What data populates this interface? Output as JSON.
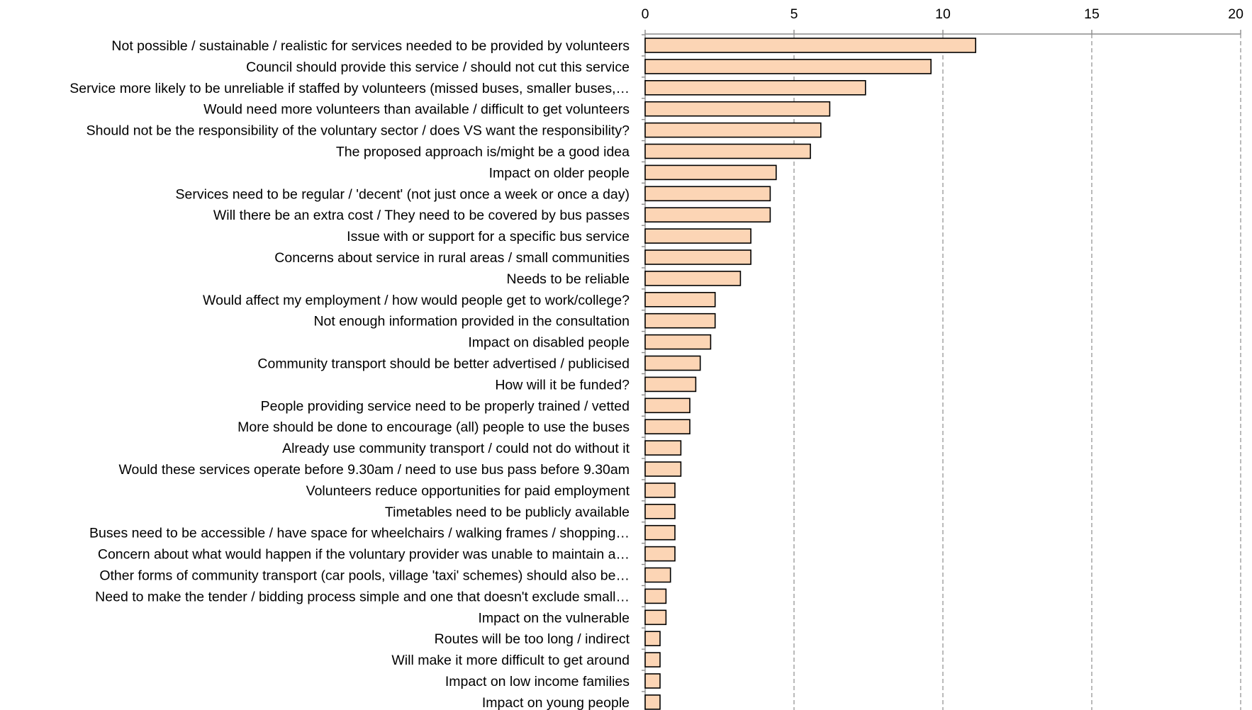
{
  "chart_data": {
    "type": "bar",
    "orientation": "horizontal",
    "title": "",
    "xlabel": "",
    "ylabel": "",
    "xlim": [
      0,
      20
    ],
    "x_ticks": [
      0,
      5,
      10,
      15,
      20
    ],
    "x_axis_position": "top",
    "grid": true,
    "bar_color": "#fcd5b5",
    "bar_edge_color": "#000000",
    "grid_color": "#8c8c8c",
    "categories": [
      "Not possible / sustainable / realistic for services needed to be provided by volunteers",
      "Council should provide this service / should not cut this service",
      "Service more likely to be unreliable if staffed by volunteers (missed buses, smaller buses,…",
      "Would need more volunteers than available / difficult to get volunteers",
      "Should not be the responsibility of the voluntary sector / does VS want the responsibility?",
      "The proposed approach is/might be a good idea",
      "Impact on older people",
      "Services need to be regular / 'decent' (not just once a week or once a day)",
      "Will there be an extra cost / They need to be covered by bus passes",
      "Issue with or support for a specific bus service",
      "Concerns about service in rural areas / small communities",
      "Needs to be reliable",
      "Would affect my employment / how would people get to work/college?",
      "Not enough information provided in the consultation",
      "Impact on disabled people",
      "Community transport should be better advertised / publicised",
      "How will it be funded?",
      "People providing service need to be properly trained / vetted",
      "More should be done to encourage (all) people to use the buses",
      "Already use community transport / could not do without it",
      "Would these services operate before 9.30am / need to use bus pass before 9.30am",
      "Volunteers reduce opportunities for paid employment",
      "Timetables need to be publicly available",
      "Buses need to be accessible / have space for wheelchairs / walking frames / shopping…",
      "Concern about what would happen if the voluntary provider was unable to maintain a…",
      "Other forms of community transport (car pools, village 'taxi' schemes) should also be…",
      "Need to make the tender / bidding process simple and one that doesn't exclude small…",
      "Impact on the vulnerable",
      "Routes will be too long / indirect",
      "Will make it more difficult to get around",
      "Impact on low income families",
      "Impact on young people"
    ],
    "values": [
      11.1,
      9.6,
      7.4,
      6.2,
      5.9,
      5.55,
      4.4,
      4.2,
      4.2,
      3.55,
      3.55,
      3.2,
      2.35,
      2.35,
      2.2,
      1.85,
      1.7,
      1.5,
      1.5,
      1.2,
      1.2,
      1.0,
      1.0,
      1.0,
      1.0,
      0.85,
      0.7,
      0.7,
      0.5,
      0.5,
      0.5,
      0.5
    ]
  }
}
